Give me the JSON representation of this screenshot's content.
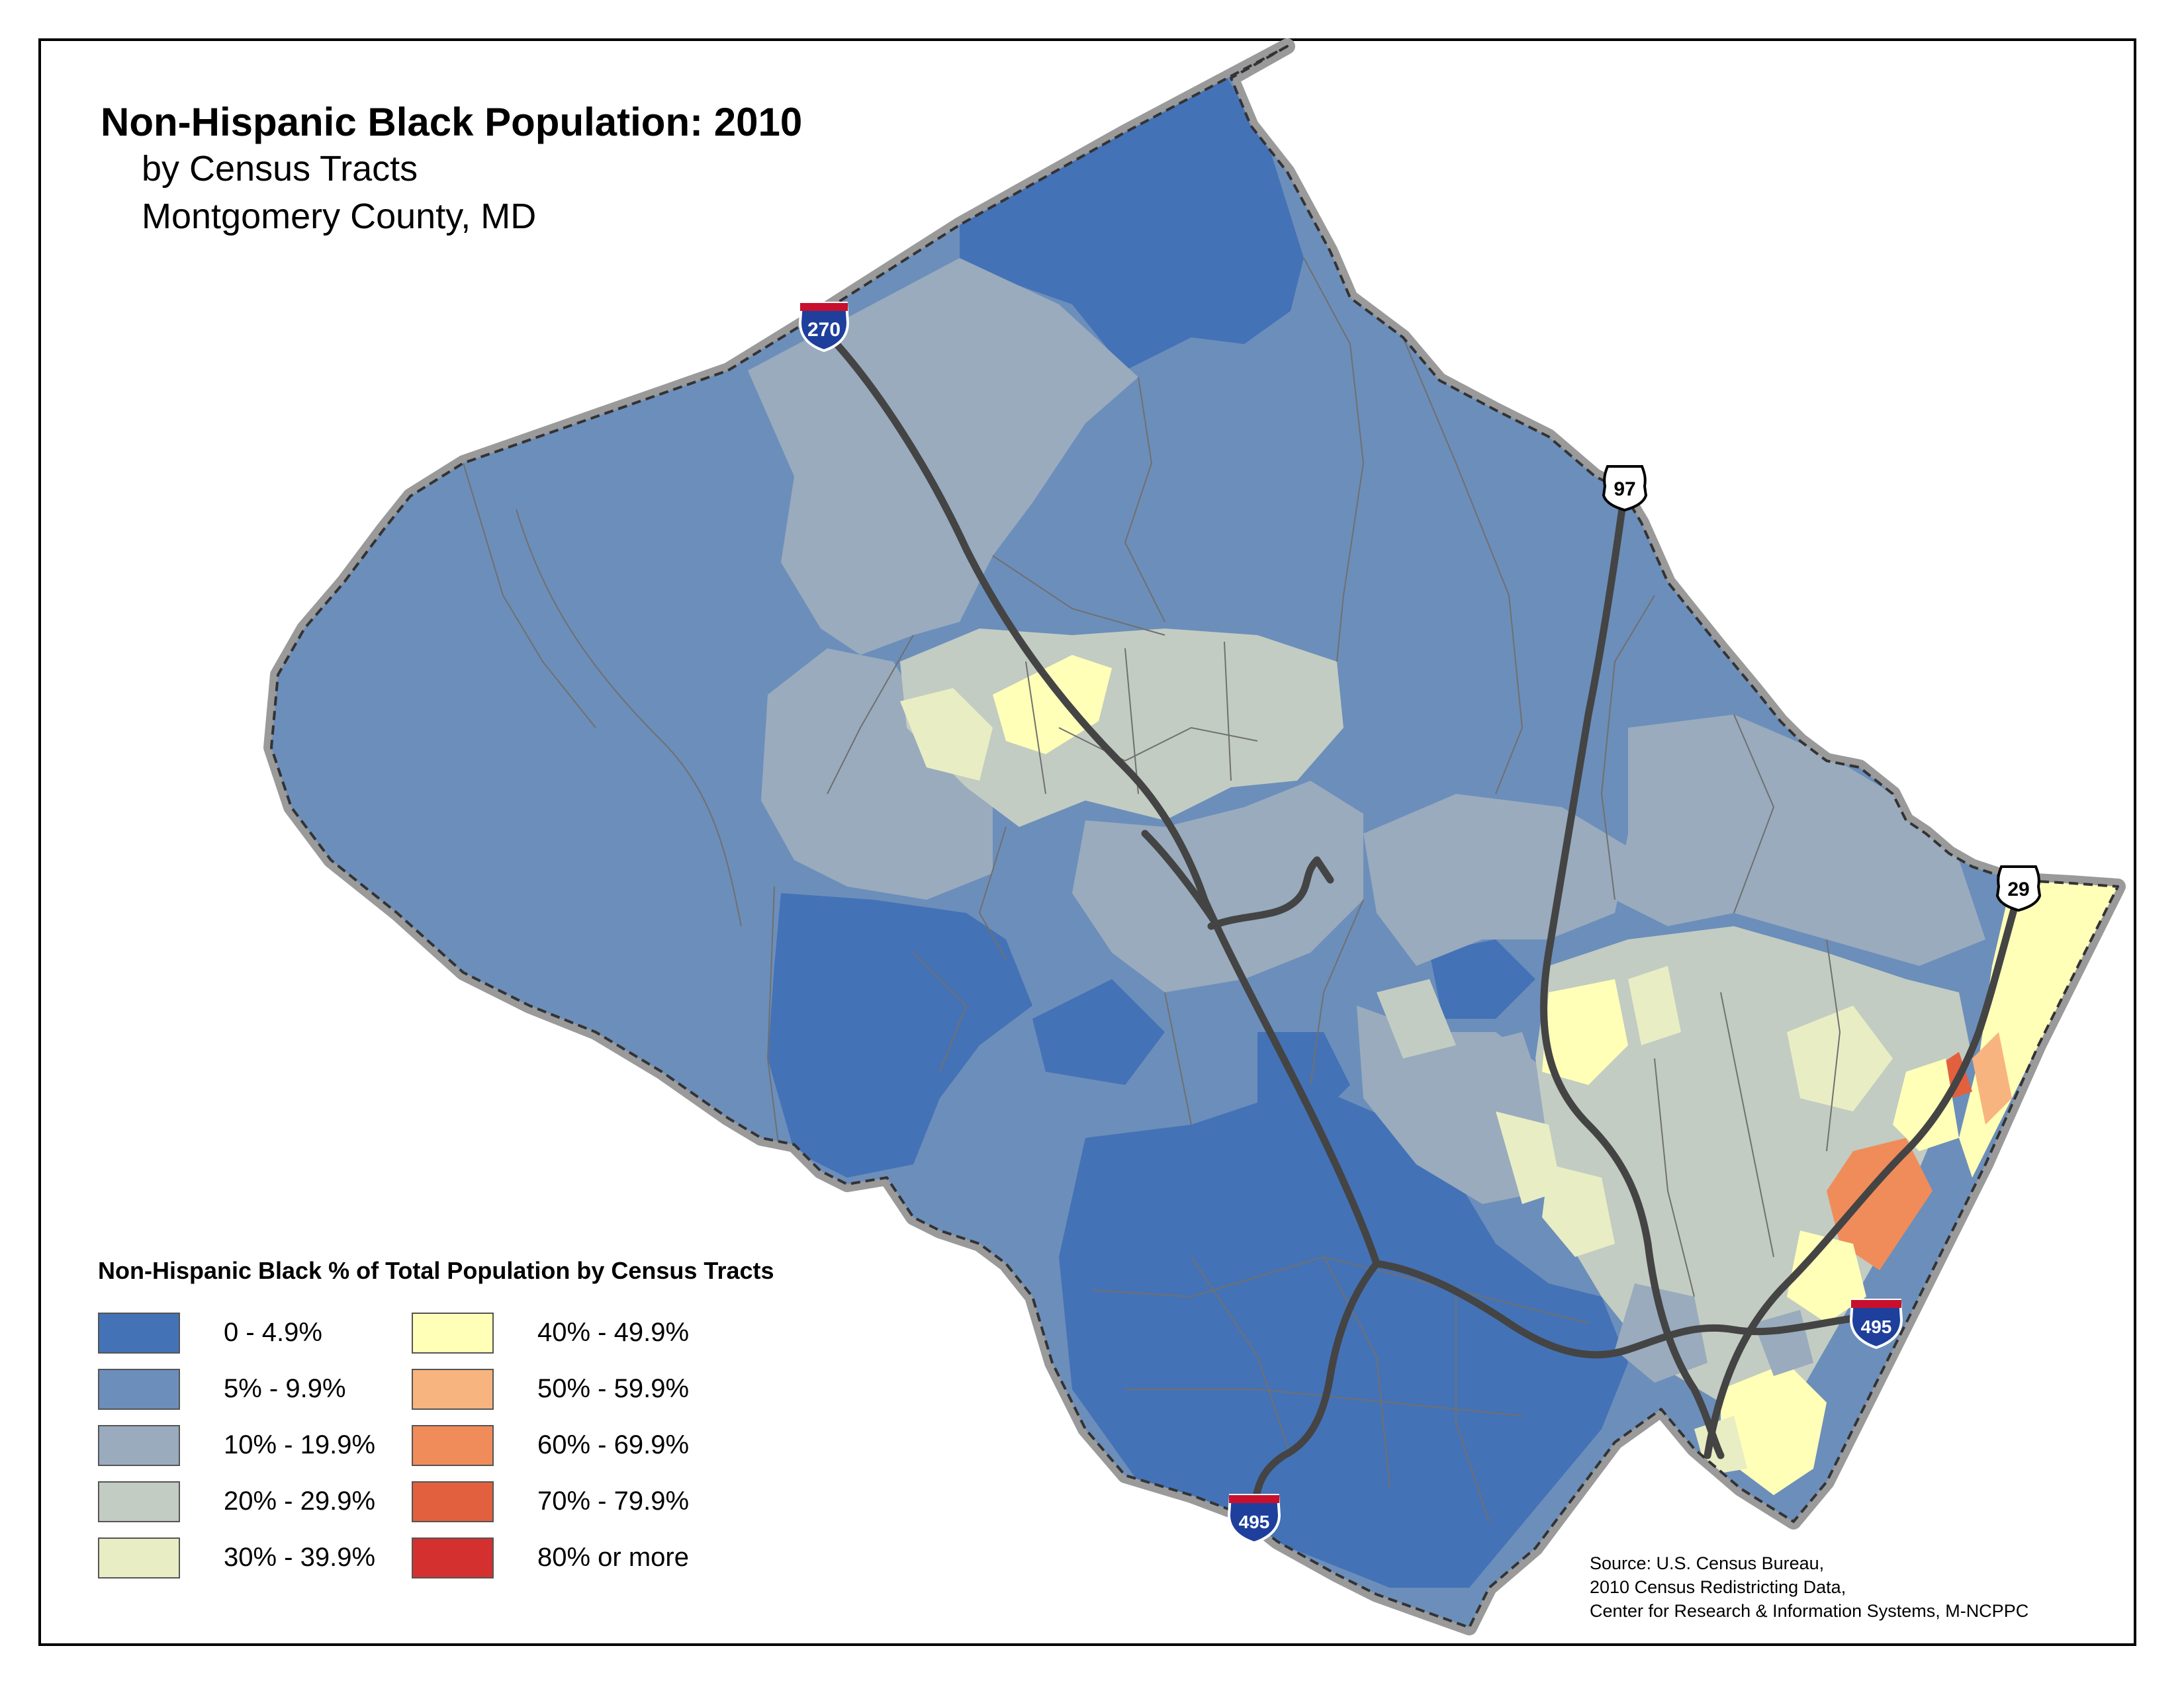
{
  "title": "Non-Hispanic Black Population: 2010",
  "subtitle_lines": [
    "by Census Tracts",
    "Montgomery County, MD"
  ],
  "legend": {
    "title": "Non-Hispanic Black % of Total Population by Census Tracts",
    "items": [
      {
        "label": "0 - 4.9%",
        "color": "#4472b6"
      },
      {
        "label": "5% - 9.9%",
        "color": "#6c8eba"
      },
      {
        "label": "10% - 19.9%",
        "color": "#99abbd"
      },
      {
        "label": "20% - 29.9%",
        "color": "#c2ccc2"
      },
      {
        "label": "30% - 39.9%",
        "color": "#e8edc4"
      },
      {
        "label": "40% - 49.9%",
        "color": "#ffffb8"
      },
      {
        "label": "50% - 59.9%",
        "color": "#f8b47e"
      },
      {
        "label": "60% - 69.9%",
        "color": "#f08c5a"
      },
      {
        "label": "70% - 79.9%",
        "color": "#e2603e"
      },
      {
        "label": "80% or more",
        "color": "#d43030"
      }
    ]
  },
  "highways": [
    {
      "label": "270",
      "type": "interstate"
    },
    {
      "label": "97",
      "type": "us-route"
    },
    {
      "label": "29",
      "type": "us-route"
    },
    {
      "label": "495",
      "type": "interstate"
    },
    {
      "label": "495",
      "type": "interstate"
    }
  ],
  "source_lines": [
    "Source: U.S. Census Bureau,",
    "2010 Census Redistricting Data,",
    "Center for Research & Information Systems, M-NCPPC"
  ],
  "colors": {
    "tract_border": "#707070",
    "road": "#444444",
    "county_outline_shadow": "#8a8a8a",
    "interstate_blue": "#1e3f9c",
    "interstate_red": "#c8102e"
  }
}
